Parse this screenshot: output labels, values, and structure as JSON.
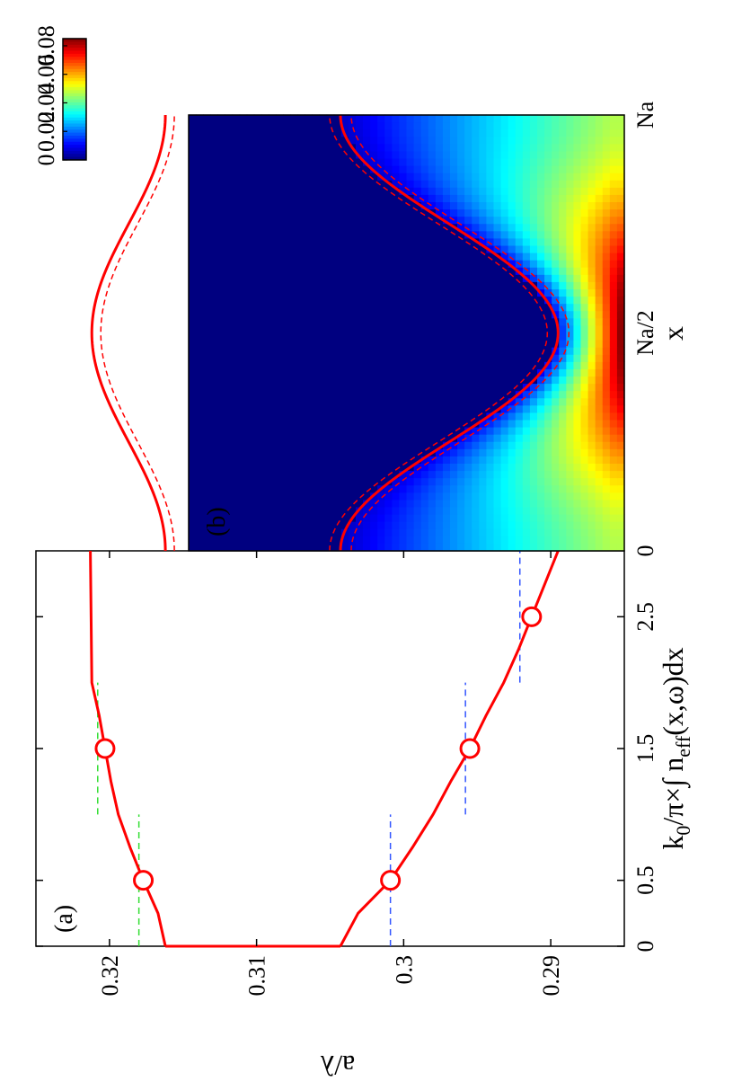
{
  "chart_data": [
    {
      "panel": "a",
      "panel_label": "(a)",
      "type": "line",
      "xlabel_parts": {
        "k": "k",
        "k_sub": "0",
        "mid": "/π×∫ n",
        "n_sub": "eff",
        "end": "(x,ω)dx"
      },
      "ylabel": "a/λ",
      "xlim": [
        0,
        3
      ],
      "ylim": [
        0.285,
        0.325
      ],
      "xticks": [
        0,
        0.5,
        1.5,
        2.5
      ],
      "xtick_labels": [
        "0",
        "0.5",
        "1.5",
        "2.5"
      ],
      "yticks": [
        0.29,
        0.3,
        0.31,
        0.32
      ],
      "ytick_labels": [
        "0.29",
        "0.3",
        "0.31",
        "0.32"
      ],
      "grid": false,
      "series": [
        {
          "color": "#ff0000",
          "style": "solid",
          "x": [
            0,
            0.25,
            0.5,
            0.75,
            1.0,
            1.25,
            1.5,
            1.75,
            2.0,
            3.0
          ],
          "y": [
            0.3162,
            0.3167,
            0.3177,
            0.3186,
            0.3194,
            0.3199,
            0.3203,
            0.3207,
            0.3212,
            0.3213
          ]
        },
        {
          "color": "#ff0000",
          "style": "solid",
          "x": [
            0,
            0.25,
            0.5,
            0.75,
            1.0,
            1.25,
            1.5,
            1.75,
            2.0,
            2.25,
            2.5,
            2.75,
            3.0
          ],
          "y": [
            0.3043,
            0.3031,
            0.3009,
            0.2994,
            0.298,
            0.2968,
            0.2955,
            0.2944,
            0.2932,
            0.2922,
            0.2913,
            0.2904,
            0.2895
          ]
        },
        {
          "color": "#ff0000",
          "style": "solid",
          "x": [
            0,
            0
          ],
          "y": [
            0.3043,
            0.3162
          ]
        }
      ],
      "markers": [
        {
          "x": 0.5,
          "y": 0.3177
        },
        {
          "x": 1.5,
          "y": 0.3203
        },
        {
          "x": 0.5,
          "y": 0.3009
        },
        {
          "x": 1.5,
          "y": 0.2955
        },
        {
          "x": 2.5,
          "y": 0.2913
        }
      ],
      "reference_lines": [
        {
          "color": "#33dd33",
          "y": 0.318,
          "x": [
            0,
            1.0
          ]
        },
        {
          "color": "#33dd33",
          "y": 0.3208,
          "x": [
            1.0,
            2.0
          ]
        },
        {
          "color": "#3355ff",
          "y": 0.3009,
          "x": [
            0,
            1.0
          ]
        },
        {
          "color": "#3355ff",
          "y": 0.2958,
          "x": [
            1.0,
            2.0
          ]
        },
        {
          "color": "#3355ff",
          "y": 0.2921,
          "x": [
            2.0,
            3.0
          ]
        }
      ]
    },
    {
      "panel": "b",
      "panel_label": "(b)",
      "type": "heatmap",
      "xlabel": "x",
      "xtick_labels": [
        "0",
        "Na/2",
        "Na"
      ],
      "colormap": "jet",
      "colorbar_range": [
        0,
        0.085
      ],
      "colorbar_ticks": [
        0,
        0.02,
        0.04,
        0.06,
        0.08
      ],
      "colorbar_tick_labels": [
        "0",
        "0.02",
        "0.04",
        "0.06",
        "0.08"
      ],
      "peak_value": 0.085,
      "upper_curve_y_range": [
        0.3162,
        0.3212
      ],
      "lower_curve_y_range": [
        0.2895,
        0.3043
      ],
      "contour_color": "#ff0000"
    }
  ]
}
